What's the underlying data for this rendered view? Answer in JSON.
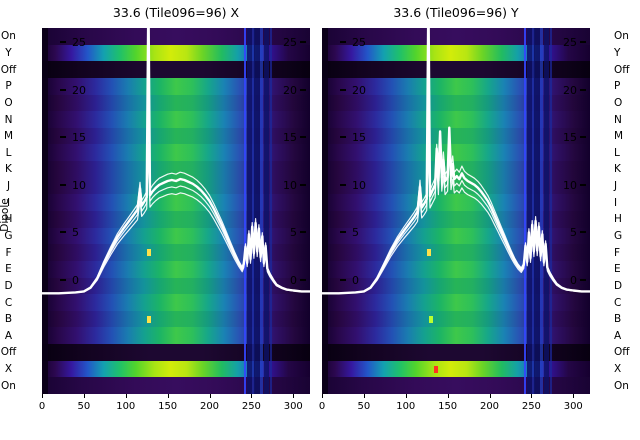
{
  "dipole_axis": {
    "label": "Dipole"
  },
  "chart_data": {
    "type": "heatmap",
    "x_range": [
      0,
      320
    ],
    "x_ticks": [
      0,
      50,
      100,
      150,
      200,
      250,
      300
    ],
    "overlay_y_ticks": [
      25,
      20,
      15,
      10,
      5,
      0
    ],
    "row_labels": [
      "On",
      "Y",
      "Off",
      "P",
      "O",
      "N",
      "M",
      "L",
      "K",
      "J",
      "I",
      "H",
      "G",
      "F",
      "E",
      "D",
      "C",
      "B",
      "A",
      "Off",
      "X",
      "On"
    ],
    "row_styles": [
      "on",
      "bright",
      "off",
      "mid2",
      "mid1",
      "mid2",
      "mid1",
      "mid2",
      "mid1",
      "mid1",
      "mid2",
      "mid1",
      "mid2",
      "mid1",
      "mid2",
      "mid1",
      "mid2",
      "mid1",
      "mid2",
      "off",
      "bright",
      "on"
    ],
    "line_color": "#ffffff",
    "bundle_factors": [
      0.88,
      0.94,
      1.06,
      1
    ],
    "colormap": {
      "on": [
        [
          0,
          "#190333"
        ],
        [
          15,
          "#270747"
        ],
        [
          35,
          "#330b58"
        ],
        [
          50,
          "#370d5e"
        ],
        [
          65,
          "#330b58"
        ],
        [
          85,
          "#270747"
        ],
        [
          100,
          "#190333"
        ]
      ],
      "off": [
        [
          0,
          "#070010"
        ],
        [
          15,
          "#12031f"
        ],
        [
          40,
          "#1d0831"
        ],
        [
          60,
          "#1d0831"
        ],
        [
          85,
          "#12031f"
        ],
        [
          100,
          "#070010"
        ]
      ],
      "mid1": [
        [
          0,
          "#12002b"
        ],
        [
          6,
          "#26063f"
        ],
        [
          13,
          "#2f0d62"
        ],
        [
          20,
          "#2c2090"
        ],
        [
          26,
          "#2346a8"
        ],
        [
          32,
          "#1a6fa8"
        ],
        [
          38,
          "#13929b"
        ],
        [
          44,
          "#17a671"
        ],
        [
          50,
          "#27b457"
        ],
        [
          56,
          "#23b060"
        ],
        [
          62,
          "#159a80"
        ],
        [
          68,
          "#1a78a8"
        ],
        [
          74,
          "#2a4aa8"
        ],
        [
          80,
          "#2c2090"
        ],
        [
          87,
          "#2d0d5c"
        ],
        [
          94,
          "#22063a"
        ],
        [
          100,
          "#12002b"
        ]
      ],
      "mid2": [
        [
          0,
          "#12002b"
        ],
        [
          6,
          "#28074a"
        ],
        [
          13,
          "#321070"
        ],
        [
          20,
          "#2c2a9e"
        ],
        [
          26,
          "#2350b4"
        ],
        [
          32,
          "#1a7cb0"
        ],
        [
          38,
          "#14a090"
        ],
        [
          44,
          "#1cb465"
        ],
        [
          50,
          "#3ec84a"
        ],
        [
          56,
          "#2ec05a"
        ],
        [
          62,
          "#16a68a"
        ],
        [
          68,
          "#1a82b4"
        ],
        [
          74,
          "#2a50b4"
        ],
        [
          80,
          "#2c2a9e"
        ],
        [
          87,
          "#2f1068"
        ],
        [
          94,
          "#24073f"
        ],
        [
          100,
          "#12002b"
        ]
      ],
      "bright": [
        [
          0,
          "#16002f"
        ],
        [
          5,
          "#2c0850"
        ],
        [
          11,
          "#3518a0"
        ],
        [
          17,
          "#2356c8"
        ],
        [
          23,
          "#13a0b0"
        ],
        [
          29,
          "#1fc06a"
        ],
        [
          35,
          "#52d42c"
        ],
        [
          42,
          "#a8e414"
        ],
        [
          48,
          "#d2ec0a"
        ],
        [
          54,
          "#b8e612"
        ],
        [
          60,
          "#6ad426"
        ],
        [
          67,
          "#22bc60"
        ],
        [
          73,
          "#14a0a8"
        ],
        [
          79,
          "#2258c8"
        ],
        [
          85,
          "#321293"
        ],
        [
          92,
          "#240646"
        ],
        [
          100,
          "#16002f"
        ]
      ]
    },
    "stripes": [
      {
        "frac": 0.012,
        "w": 6,
        "color": "#0a0016",
        "op": 0.9
      },
      {
        "frac": 0.758,
        "w": 2,
        "color": "#3346ff",
        "op": 0.9
      },
      {
        "frac": 0.775,
        "w": 5,
        "color": "#0d1166",
        "op": 0.85
      },
      {
        "frac": 0.79,
        "w": 3,
        "color": "#1b2a9e",
        "op": 0.8
      },
      {
        "frac": 0.804,
        "w": 6,
        "color": "#0c1060",
        "op": 0.85
      },
      {
        "frac": 0.82,
        "w": 3,
        "color": "#2240c4",
        "op": 0.7
      },
      {
        "frac": 0.836,
        "w": 5,
        "color": "#0d1166",
        "op": 0.8
      },
      {
        "frac": 0.853,
        "w": 2,
        "color": "#1b2a9e",
        "op": 0.7
      }
    ],
    "panels": [
      {
        "name": "X",
        "title": "33.6 (Tile096=96) X",
        "marks": [
          {
            "row": 13,
            "frac": 0.4,
            "color": "#ffe14a"
          },
          {
            "row": 17,
            "frac": 0.4,
            "color": "#ffe14a"
          }
        ],
        "line": [
          [
            0,
            -1.4
          ],
          [
            20,
            -1.4
          ],
          [
            40,
            -1.3
          ],
          [
            50,
            -1.2
          ],
          [
            58,
            -0.8
          ],
          [
            66,
            0.2
          ],
          [
            74,
            1.8
          ],
          [
            82,
            3.2
          ],
          [
            90,
            4.5
          ],
          [
            98,
            5.5
          ],
          [
            104,
            6.2
          ],
          [
            110,
            6.9
          ],
          [
            114,
            7.4
          ],
          [
            117,
            9.6
          ],
          [
            119,
            7.8
          ],
          [
            122,
            8.2
          ],
          [
            125,
            8.7
          ],
          [
            127,
            30
          ],
          [
            129,
            8.9
          ],
          [
            132,
            9.3
          ],
          [
            136,
            9.7
          ],
          [
            140,
            10.0
          ],
          [
            145,
            10.2
          ],
          [
            150,
            10.4
          ],
          [
            155,
            10.5
          ],
          [
            160,
            10.4
          ],
          [
            165,
            10.6
          ],
          [
            170,
            10.5
          ],
          [
            175,
            10.3
          ],
          [
            180,
            10.1
          ],
          [
            185,
            9.8
          ],
          [
            190,
            9.4
          ],
          [
            195,
            8.9
          ],
          [
            200,
            8.3
          ],
          [
            205,
            7.5
          ],
          [
            210,
            6.6
          ],
          [
            215,
            5.7
          ],
          [
            220,
            4.7
          ],
          [
            225,
            3.7
          ],
          [
            230,
            2.7
          ],
          [
            235,
            1.8
          ],
          [
            239,
            1.2
          ],
          [
            241,
            1.7
          ],
          [
            243,
            3.5
          ],
          [
            245,
            1.8
          ],
          [
            247,
            4.8
          ],
          [
            249,
            2.2
          ],
          [
            251,
            5.6
          ],
          [
            253,
            2.8
          ],
          [
            255,
            6.0
          ],
          [
            257,
            3.0
          ],
          [
            259,
            5.4
          ],
          [
            261,
            2.4
          ],
          [
            263,
            4.6
          ],
          [
            265,
            1.8
          ],
          [
            267,
            3.6
          ],
          [
            269,
            1.2
          ],
          [
            272,
            0.6
          ],
          [
            276,
            0.0
          ],
          [
            280,
            -0.5
          ],
          [
            286,
            -0.8
          ],
          [
            292,
            -1.0
          ],
          [
            300,
            -1.1
          ],
          [
            310,
            -1.2
          ],
          [
            320,
            -1.2
          ]
        ]
      },
      {
        "name": "Y",
        "title": "33.6 (Tile096=96) Y",
        "marks": [
          {
            "row": 13,
            "frac": 0.4,
            "color": "#ffe14a"
          },
          {
            "row": 17,
            "frac": 0.405,
            "color": "#baff30"
          },
          {
            "row": 20,
            "frac": 0.425,
            "color": "#ff3222"
          }
        ],
        "line": [
          [
            0,
            -1.4
          ],
          [
            20,
            -1.4
          ],
          [
            40,
            -1.3
          ],
          [
            50,
            -1.2
          ],
          [
            58,
            -0.8
          ],
          [
            66,
            0.2
          ],
          [
            74,
            1.6
          ],
          [
            82,
            3.0
          ],
          [
            90,
            4.2
          ],
          [
            98,
            5.2
          ],
          [
            104,
            5.9
          ],
          [
            110,
            6.6
          ],
          [
            114,
            7.2
          ],
          [
            117,
            9.8
          ],
          [
            119,
            7.6
          ],
          [
            122,
            8.0
          ],
          [
            125,
            8.5
          ],
          [
            127,
            30
          ],
          [
            129,
            8.8
          ],
          [
            132,
            9.4
          ],
          [
            135,
            10.0
          ],
          [
            137,
            13.8
          ],
          [
            139,
            10.4
          ],
          [
            141,
            15.6
          ],
          [
            143,
            10.8
          ],
          [
            145,
            12.6
          ],
          [
            147,
            10.4
          ],
          [
            150,
            10.8
          ],
          [
            152,
            16.0
          ],
          [
            154,
            11.0
          ],
          [
            156,
            12.2
          ],
          [
            158,
            10.6
          ],
          [
            161,
            10.9
          ],
          [
            164,
            10.6
          ],
          [
            167,
            11.2
          ],
          [
            170,
            10.7
          ],
          [
            174,
            10.4
          ],
          [
            178,
            10.2
          ],
          [
            182,
            10.0
          ],
          [
            186,
            9.7
          ],
          [
            190,
            9.3
          ],
          [
            194,
            8.8
          ],
          [
            198,
            8.3
          ],
          [
            202,
            7.6
          ],
          [
            206,
            6.8
          ],
          [
            210,
            6.0
          ],
          [
            214,
            5.2
          ],
          [
            218,
            4.4
          ],
          [
            222,
            3.6
          ],
          [
            226,
            2.8
          ],
          [
            230,
            2.1
          ],
          [
            234,
            1.5
          ],
          [
            238,
            1.1
          ],
          [
            241,
            1.6
          ],
          [
            243,
            3.6
          ],
          [
            245,
            1.9
          ],
          [
            247,
            5.0
          ],
          [
            249,
            2.3
          ],
          [
            251,
            5.8
          ],
          [
            253,
            3.0
          ],
          [
            255,
            6.2
          ],
          [
            257,
            3.1
          ],
          [
            259,
            5.6
          ],
          [
            261,
            2.5
          ],
          [
            263,
            4.8
          ],
          [
            265,
            1.9
          ],
          [
            267,
            3.8
          ],
          [
            269,
            1.3
          ],
          [
            272,
            0.7
          ],
          [
            276,
            0.1
          ],
          [
            280,
            -0.4
          ],
          [
            286,
            -0.8
          ],
          [
            292,
            -1.0
          ],
          [
            300,
            -1.1
          ],
          [
            310,
            -1.2
          ],
          [
            320,
            -1.2
          ]
        ]
      }
    ]
  }
}
